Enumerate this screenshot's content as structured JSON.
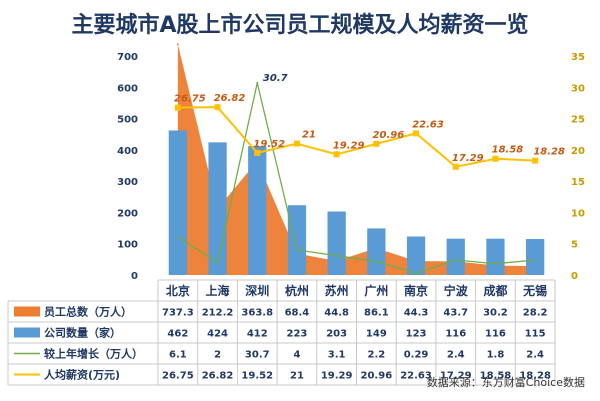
{
  "chart_data": {
    "type": "bar",
    "title": "主要城市A股上市公司员工规模及人均薪资一览",
    "categories": [
      "北京",
      "上海",
      "深圳",
      "杭州",
      "苏州",
      "广州",
      "南京",
      "宁波",
      "成都",
      "无锡"
    ],
    "series": [
      {
        "name": "员工总数（万人）",
        "kind": "area",
        "axis": "left",
        "color": "#ed7d31",
        "values": [
          737.3,
          212.2,
          363.8,
          68.4,
          44.8,
          86.1,
          44.3,
          43.7,
          30.2,
          28.2
        ]
      },
      {
        "name": "公司数量（家）",
        "kind": "bar",
        "axis": "left",
        "color": "#5b9bd5",
        "values": [
          462,
          424,
          412,
          223,
          203,
          149,
          123,
          116,
          116,
          115
        ]
      },
      {
        "name": "较上年增长（万人）",
        "kind": "line",
        "axis": "right",
        "color": "#70ad47",
        "values": [
          6.1,
          2,
          30.7,
          4,
          3.1,
          2.2,
          0.29,
          2.4,
          1.8,
          2.4
        ]
      },
      {
        "name": "人均薪资(万元)",
        "kind": "line",
        "axis": "right",
        "color": "#ffc000",
        "values": [
          26.75,
          26.82,
          19.52,
          21,
          19.29,
          20.96,
          22.63,
          17.29,
          18.58,
          18.28
        ]
      }
    ],
    "table_cells": {
      "员工总数（万人）": [
        "737.3",
        "212.2",
        "363.8",
        "68.4",
        "44.8",
        "86.1",
        "44.3",
        "43.7",
        "30.2",
        "28.2"
      ],
      "公司数量（家）": [
        "462",
        "424",
        "412",
        "223",
        "203",
        "149",
        "123",
        "116",
        "116",
        "115"
      ],
      "较上年增长（万人）": [
        "6.1",
        "2",
        "30.7",
        "4",
        "3.1",
        "2.2",
        "0.29",
        "2.4",
        "1.8",
        "2.4"
      ],
      "人均薪资(万元)": [
        "26.75",
        "26.82",
        "19.52",
        "21",
        "19.29",
        "20.96",
        "22.63",
        "17.29",
        "18.58",
        "18.28"
      ]
    },
    "data_labels": {
      "人均薪资(万元)": [
        "26.75",
        "26.82",
        "19.52",
        "21",
        "19.29",
        "20.96",
        "22.63",
        "17.29",
        "18.58",
        "18.28"
      ],
      "较上年增长（万人）": [
        "",
        "",
        "30.7",
        "",
        "",
        "",
        "",
        "",
        "",
        ""
      ]
    },
    "y_left": {
      "ylim": [
        0,
        700
      ],
      "ticks": [
        "0",
        "100",
        "200",
        "300",
        "400",
        "500",
        "600",
        "700"
      ]
    },
    "y_right": {
      "ylim": [
        0,
        35
      ],
      "ticks": [
        "0",
        "5",
        "10",
        "15",
        "20",
        "25",
        "30",
        "35"
      ]
    },
    "grid": false,
    "legend": "data-table-bottom",
    "source": "数据来源：东方财富Choice数据"
  }
}
